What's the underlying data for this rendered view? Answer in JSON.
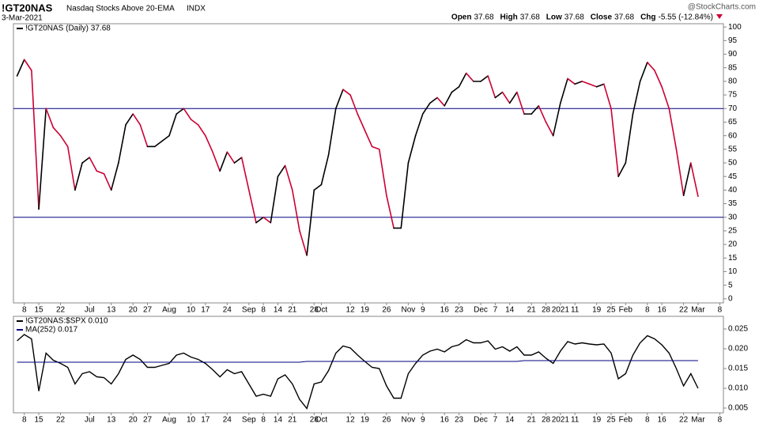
{
  "header": {
    "symbol": "!GT20NAS",
    "description": "Nasdaq Stocks Above 20-EMA",
    "exchange": "INDX",
    "date": "3-Mar-2021",
    "source": "@StockCharts.com",
    "quote": [
      {
        "label": "Open",
        "value": "37.68"
      },
      {
        "label": "High",
        "value": "37.68"
      },
      {
        "label": "Low",
        "value": "37.68"
      },
      {
        "label": "Close",
        "value": "37.68"
      },
      {
        "label": "Chg",
        "value": "-5.55 (-12.84%)"
      }
    ]
  },
  "chart_data": [
    {
      "type": "line",
      "up_color": "#000000",
      "down_color": "#cc0033",
      "reference_lines": [
        70,
        30
      ],
      "reference_color": "#000080",
      "categories": [
        null,
        "8",
        null,
        "15",
        null,
        null,
        "22",
        null,
        null,
        null,
        "Jul",
        null,
        null,
        "13",
        null,
        null,
        "20",
        null,
        "27",
        null,
        null,
        "Aug",
        null,
        null,
        "10",
        null,
        "17",
        null,
        null,
        "24",
        null,
        null,
        "Sep",
        null,
        "8",
        null,
        "14",
        null,
        "21",
        null,
        null,
        "28",
        "Oct",
        null,
        null,
        null,
        "12",
        null,
        "19",
        null,
        null,
        "26",
        null,
        null,
        "Nov",
        null,
        "9",
        null,
        null,
        "16",
        null,
        "23",
        null,
        null,
        "Dec",
        null,
        "7",
        null,
        "14",
        null,
        null,
        "21",
        null,
        "28",
        null,
        "2021",
        null,
        "11",
        null,
        null,
        "19",
        null,
        "25",
        null,
        "Feb",
        null,
        null,
        "8",
        null,
        "16",
        null,
        null,
        "22",
        null,
        "Mar",
        null,
        null,
        "8"
      ],
      "series": [
        {
          "name": "!GT20NAS (Daily) 37.68",
          "color": "#000000",
          "values": [
            82,
            88,
            84,
            33,
            70,
            63,
            60,
            56,
            40,
            50,
            52,
            47,
            46,
            40,
            50,
            64,
            68,
            64,
            56,
            56,
            58,
            60,
            68,
            70,
            66,
            64,
            60,
            54,
            47,
            54,
            50,
            52,
            40,
            28,
            30,
            28,
            45,
            49,
            40,
            25,
            16,
            40,
            42,
            53,
            70,
            77,
            75,
            68,
            62,
            56,
            55,
            38,
            26,
            26,
            50,
            60,
            68,
            72,
            74,
            71,
            76,
            78,
            83,
            80,
            80,
            82,
            74,
            76,
            72,
            76,
            68,
            68,
            71,
            65,
            60,
            72,
            81,
            79,
            80,
            79,
            78,
            79,
            70,
            45,
            50,
            68,
            80,
            87,
            84,
            78,
            70,
            55,
            38,
            50,
            37.68,
            null,
            null,
            null
          ]
        }
      ],
      "ylim": [
        -1.5,
        101.2
      ],
      "yticks": [
        0,
        5,
        10,
        15,
        20,
        25,
        30,
        35,
        40,
        45,
        50,
        55,
        60,
        65,
        70,
        75,
        80,
        85,
        90,
        95,
        100
      ]
    },
    {
      "type": "line",
      "categories": [
        null,
        "8",
        null,
        "15",
        null,
        null,
        "22",
        null,
        null,
        null,
        "Jul",
        null,
        null,
        "13",
        null,
        null,
        "20",
        null,
        "27",
        null,
        null,
        "Aug",
        null,
        null,
        "10",
        null,
        "17",
        null,
        null,
        "24",
        null,
        null,
        "Sep",
        null,
        "8",
        null,
        "14",
        null,
        "21",
        null,
        null,
        "28",
        "Oct",
        null,
        null,
        null,
        "12",
        null,
        "19",
        null,
        null,
        "26",
        null,
        null,
        "Nov",
        null,
        "9",
        null,
        null,
        "16",
        null,
        "23",
        null,
        null,
        "Dec",
        null,
        "7",
        null,
        "14",
        null,
        null,
        "21",
        null,
        "28",
        null,
        "2021",
        null,
        "11",
        null,
        null,
        "19",
        null,
        "25",
        null,
        "Feb",
        null,
        null,
        "8",
        null,
        "16",
        null,
        null,
        "22",
        null,
        "Mar",
        null,
        null,
        "8"
      ],
      "series": [
        {
          "name": "!GT20NAS:$SPX 0.010",
          "color": "#000000",
          "values": [
            0.022,
            0.0236,
            0.0225,
            0.0093,
            0.0189,
            0.0171,
            0.0163,
            0.0153,
            0.0111,
            0.0137,
            0.0142,
            0.0129,
            0.0127,
            0.0111,
            0.0137,
            0.0173,
            0.0184,
            0.0173,
            0.0153,
            0.0153,
            0.0158,
            0.0163,
            0.0184,
            0.0189,
            0.0179,
            0.0173,
            0.0163,
            0.0147,
            0.0129,
            0.0147,
            0.0137,
            0.0142,
            0.0111,
            0.008,
            0.0085,
            0.008,
            0.0124,
            0.0134,
            0.0111,
            0.0072,
            0.0049,
            0.0111,
            0.0116,
            0.0145,
            0.0189,
            0.0207,
            0.0202,
            0.0184,
            0.0168,
            0.0153,
            0.015,
            0.0106,
            0.0075,
            0.0075,
            0.0137,
            0.0163,
            0.0184,
            0.0194,
            0.0199,
            0.0192,
            0.0205,
            0.021,
            0.0223,
            0.0215,
            0.0215,
            0.022,
            0.0199,
            0.0205,
            0.0194,
            0.0205,
            0.0184,
            0.0184,
            0.0192,
            0.0176,
            0.0163,
            0.0194,
            0.0218,
            0.0212,
            0.0215,
            0.0212,
            0.021,
            0.0212,
            0.0189,
            0.0124,
            0.0137,
            0.0184,
            0.0215,
            0.0233,
            0.0225,
            0.021,
            0.0189,
            0.015,
            0.0106,
            0.0137,
            0.01,
            null,
            null,
            null
          ]
        },
        {
          "name": "MA(252) 0.017",
          "color": "#000080",
          "values": [
            0.0166,
            0.0166,
            0.0166,
            0.0166,
            0.0166,
            0.0166,
            0.0166,
            0.0166,
            0.0166,
            0.0166,
            0.0166,
            0.0166,
            0.0166,
            0.0166,
            0.0166,
            0.0166,
            0.0166,
            0.0166,
            0.0166,
            0.0166,
            0.0166,
            0.0166,
            0.0166,
            0.0166,
            0.0166,
            0.0166,
            0.0166,
            0.0166,
            0.0166,
            0.0166,
            0.0166,
            0.0166,
            0.0166,
            0.0166,
            0.0166,
            0.0166,
            0.0166,
            0.0166,
            0.0166,
            0.0166,
            0.0168,
            0.0168,
            0.0168,
            0.0168,
            0.0168,
            0.0168,
            0.0168,
            0.0168,
            0.0168,
            0.0168,
            0.0168,
            0.0168,
            0.0168,
            0.0168,
            0.0168,
            0.0168,
            0.0168,
            0.0168,
            0.0168,
            0.0168,
            0.0168,
            0.0168,
            0.0168,
            0.0168,
            0.0168,
            0.0168,
            0.0168,
            0.0168,
            0.0168,
            0.0168,
            0.017,
            0.017,
            0.017,
            0.017,
            0.017,
            0.017,
            0.017,
            0.017,
            0.017,
            0.017,
            0.017,
            0.017,
            0.017,
            0.017,
            0.017,
            0.017,
            0.017,
            0.017,
            0.017,
            0.017,
            0.017,
            0.017,
            0.017,
            0.017,
            0.017,
            null,
            null,
            null
          ]
        }
      ],
      "ylim": [
        0.0038,
        0.0282
      ],
      "yticks": [
        {
          "value": 0.005,
          "label": "0.005"
        },
        {
          "value": 0.01,
          "label": "0.010"
        },
        {
          "value": 0.015,
          "label": "0.015"
        },
        {
          "value": 0.02,
          "label": "0.020"
        },
        {
          "value": 0.025,
          "label": "0.025"
        }
      ]
    }
  ]
}
